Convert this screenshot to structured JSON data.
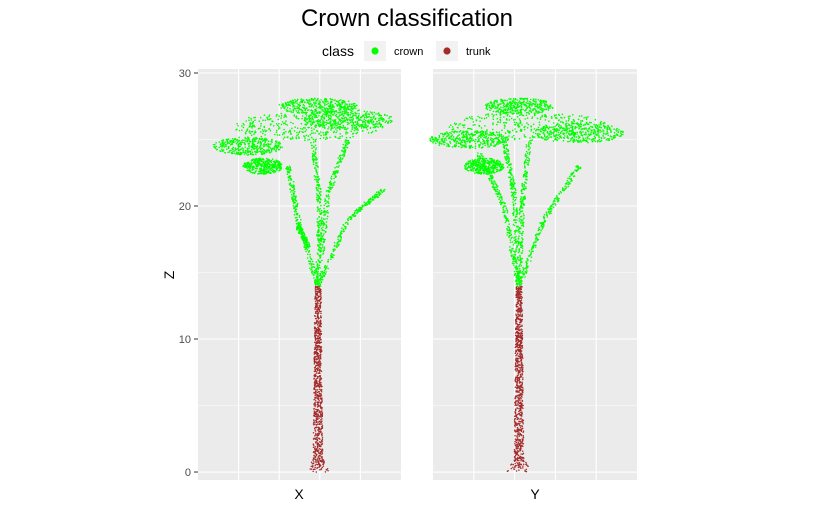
{
  "chart_data": {
    "type": "scatter",
    "title": "Crown classification",
    "legend": {
      "title": "class",
      "position": "top",
      "entries": [
        {
          "name": "crown",
          "color": "#00ff00"
        },
        {
          "name": "trunk",
          "color": "#a52a2a"
        }
      ]
    },
    "ylabel": "Z",
    "ylim": [
      -0.6,
      30.3
    ],
    "yticks": [
      0,
      10,
      20,
      30
    ],
    "grid": true,
    "panels": [
      {
        "xlabel": "X",
        "trunk_top": 14.0,
        "crown_top": 28.3,
        "crown_bottom": 14.2
      },
      {
        "xlabel": "Y",
        "trunk_top": 14.0,
        "crown_top": 28.0,
        "crown_bottom": 14.2
      }
    ]
  }
}
